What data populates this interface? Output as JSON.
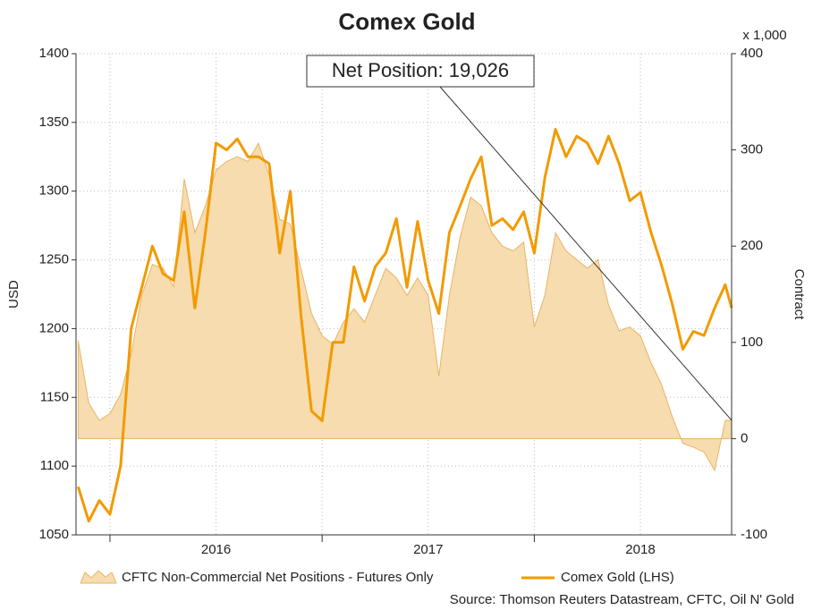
{
  "chart_data": {
    "type": "line",
    "title": "Comex Gold",
    "ylabel": "USD",
    "y2label": "Contract",
    "y2_unit_label": "x 1,000",
    "source": "Source: Thomson Reuters Datastream, CFTC, Oil N' Gold",
    "annotation": "Net Position: 19,026",
    "x": [
      2015.35,
      2015.4,
      2015.45,
      2015.5,
      2015.55,
      2015.6,
      2015.65,
      2015.7,
      2015.75,
      2015.8,
      2015.85,
      2015.9,
      2015.95,
      2016,
      2016.05,
      2016.1,
      2016.15,
      2016.2,
      2016.25,
      2016.3,
      2016.35,
      2016.4,
      2016.45,
      2016.5,
      2016.55,
      2016.6,
      2016.65,
      2016.7,
      2016.75,
      2016.8,
      2016.85,
      2016.9,
      2016.95,
      2017,
      2017.05,
      2017.1,
      2017.15,
      2017.2,
      2017.25,
      2017.3,
      2017.35,
      2017.4,
      2017.45,
      2017.5,
      2017.55,
      2017.6,
      2017.65,
      2017.7,
      2017.75,
      2017.8,
      2017.85,
      2017.9,
      2017.95,
      2018,
      2018.05,
      2018.1,
      2018.15,
      2018.2,
      2018.25,
      2018.3,
      2018.35,
      2018.4,
      2018.43
    ],
    "xlim": [
      2015.34,
      2018.43
    ],
    "xticks": [
      2016,
      2017,
      2018
    ],
    "xminor": [
      2015.5,
      2016.5,
      2017.5
    ],
    "ylim": [
      1050,
      1400
    ],
    "yticks": [
      1050,
      1100,
      1150,
      1200,
      1250,
      1300,
      1350,
      1400
    ],
    "y2lim": [
      -100,
      400
    ],
    "y2ticks": [
      -100,
      0,
      100,
      200,
      300,
      400
    ],
    "grid": true,
    "legend": "bottom",
    "series": [
      {
        "name": "CFTC Non-Commercial Net Positions - Futures Only",
        "type": "area",
        "axis": "y2",
        "color": "#f6dcae",
        "edge": "#e9b466",
        "values": [
          102,
          37,
          19,
          26,
          46,
          88,
          149,
          181,
          177,
          158,
          270,
          214,
          242,
          279,
          288,
          293,
          288,
          307,
          274,
          228,
          223,
          177,
          130,
          107,
          98,
          121,
          135,
          121,
          149,
          177,
          167,
          149,
          167,
          149,
          65,
          149,
          209,
          251,
          242,
          214,
          200,
          195,
          204,
          116,
          149,
          214,
          195,
          186,
          177,
          186,
          139,
          112,
          116,
          107,
          79,
          56,
          23,
          -5,
          -9,
          -14,
          -33,
          19,
          19
        ]
      },
      {
        "name": "Comex Gold (LHS)",
        "type": "line",
        "color": "#f29a00",
        "values": [
          1085,
          1060,
          1075,
          1065,
          1100,
          1200,
          1230,
          1260,
          1240,
          1235,
          1285,
          1215,
          1270,
          1335,
          1330,
          1338,
          1325,
          1325,
          1320,
          1255,
          1300,
          1210,
          1140,
          1133,
          1190,
          1190,
          1245,
          1220,
          1245,
          1255,
          1280,
          1230,
          1278,
          1235,
          1211,
          1270,
          1289,
          1309,
          1325,
          1275,
          1280,
          1272,
          1285,
          1255,
          1310,
          1345,
          1325,
          1340,
          1335,
          1320,
          1340,
          1320,
          1293,
          1299,
          1270,
          1246,
          1218,
          1185,
          1198,
          1195,
          1215,
          1232,
          1215
        ]
      }
    ]
  }
}
